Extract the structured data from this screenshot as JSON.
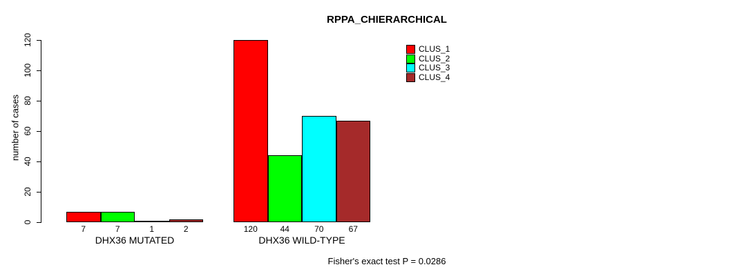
{
  "chart_data": {
    "type": "bar",
    "title": "RPPA_CHIERARCHICAL",
    "ylabel": "number of cases",
    "xlabel": "",
    "footer": "Fisher's exact test P = 0.0286",
    "categories": [
      "DHX36 MUTATED",
      "DHX36 WILD-TYPE"
    ],
    "series": [
      {
        "name": "CLUS_1",
        "color": "#FF0000",
        "values": [
          7,
          120
        ]
      },
      {
        "name": "CLUS_2",
        "color": "#00FF00",
        "values": [
          7,
          44
        ]
      },
      {
        "name": "CLUS_3",
        "color": "#00FFFF",
        "values": [
          1,
          70
        ]
      },
      {
        "name": "CLUS_4",
        "color": "#A52A2A",
        "values": [
          2,
          67
        ]
      }
    ],
    "yticks": [
      0,
      20,
      40,
      60,
      80,
      100,
      120
    ],
    "ylim": [
      0,
      120
    ],
    "grid": false,
    "legend_position": "top-right",
    "bar_value_labels": true,
    "bar_border_color": "#000000",
    "text_color": "#000000",
    "background_color": "#FFFFFF"
  }
}
